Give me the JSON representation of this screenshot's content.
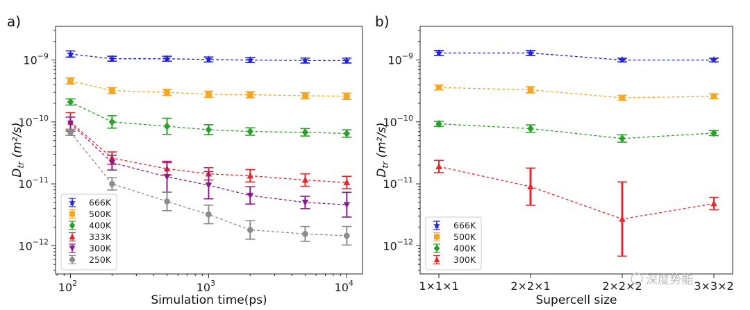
{
  "watermark": "深度势能",
  "colors": {
    "666K": "#1f1fdc",
    "500K": "#f5a623",
    "400K": "#2ca02c",
    "333K": "#e8262b",
    "300K_a": "#8b1a8b",
    "250K": "#8c8c8c",
    "300K_b": "#e8262b"
  },
  "chart_data": [
    {
      "type": "line",
      "panel_label": "a)",
      "xlabel": "Simulation time(ps)",
      "ylabel_base": "D",
      "ylabel_sub": "tr",
      "ylabel_unit": " (m²/s)",
      "xscale": "log",
      "yscale": "log",
      "xlim": [
        78,
        13000
      ],
      "ylim": [
        3.5e-13,
        3.5e-09
      ],
      "xticks": [
        {
          "v": 100,
          "b": "10",
          "e": "2"
        },
        {
          "v": 1000,
          "b": "10",
          "e": "3"
        },
        {
          "v": 10000,
          "b": "10",
          "e": "4"
        }
      ],
      "yticks": [
        {
          "v": 1e-09,
          "b": "10",
          "e": "−9"
        },
        {
          "v": 1e-10,
          "b": "10",
          "e": "−10"
        },
        {
          "v": 1e-11,
          "b": "10",
          "e": "−11"
        },
        {
          "v": 1e-12,
          "b": "10",
          "e": "−12"
        }
      ],
      "legend_position": "lower-left",
      "x": [
        100,
        200,
        500,
        1000,
        2000,
        5000,
        10000
      ],
      "series": [
        {
          "name": "666K",
          "color": "#1f1fdc",
          "marker": "star",
          "values": [
            1.25e-09,
            1.05e-09,
            1.05e-09,
            1.02e-09,
            1e-09,
            9.8e-10,
            9.8e-10
          ],
          "err": [
            0.05,
            0.04,
            0.04,
            0.04,
            0.04,
            0.04,
            0.04
          ]
        },
        {
          "name": "500K",
          "color": "#f5a623",
          "marker": "square",
          "values": [
            4.6e-10,
            3.2e-10,
            3e-10,
            2.8e-10,
            2.75e-10,
            2.65e-10,
            2.6e-10
          ],
          "err": [
            0.05,
            0.05,
            0.05,
            0.05,
            0.05,
            0.05,
            0.05
          ]
        },
        {
          "name": "400K",
          "color": "#2ca02c",
          "marker": "diamond",
          "values": [
            2.1e-10,
            1e-10,
            8.5e-11,
            7.5e-11,
            7e-11,
            6.8e-11,
            6.5e-11
          ],
          "err": [
            0.05,
            0.1,
            0.13,
            0.08,
            0.06,
            0.06,
            0.06
          ]
        },
        {
          "name": "333K",
          "color": "#e8262b",
          "marker": "triangle",
          "values": [
            1e-10,
            2.6e-11,
            1.75e-11,
            1.45e-11,
            1.35e-11,
            1.15e-11,
            1.05e-11
          ],
          "err": [
            0.15,
            0.1,
            0.1,
            0.1,
            0.1,
            0.1,
            0.1
          ]
        },
        {
          "name": "300K",
          "color": "#8b1a8b",
          "marker": "tri-down",
          "values": [
            9.5e-11,
            2.2e-11,
            1.3e-11,
            9.5e-12,
            6.5e-12,
            5e-12,
            4.6e-12
          ],
          "err": [
            0.1,
            0.12,
            0.25,
            0.22,
            0.14,
            0.1,
            0.2
          ]
        },
        {
          "name": "250K",
          "color": "#8c8c8c",
          "marker": "circle",
          "values": [
            6.8e-11,
            1e-11,
            5.2e-12,
            3.2e-12,
            1.8e-12,
            1.55e-12,
            1.45e-12
          ],
          "err": [
            0.05,
            0.1,
            0.15,
            0.15,
            0.15,
            0.12,
            0.15
          ]
        }
      ]
    },
    {
      "type": "line",
      "panel_label": "b)",
      "xlabel": "Supercell size",
      "ylabel_base": "D",
      "ylabel_sub": "tr",
      "ylabel_unit": " (m²/s)",
      "yscale": "log",
      "ylim": [
        3.5e-13,
        3.5e-09
      ],
      "categories": [
        "1×1×1",
        "2×2×1",
        "2×2×2",
        "3×3×2"
      ],
      "yticks": [
        {
          "v": 1e-09,
          "b": "10",
          "e": "−9"
        },
        {
          "v": 1e-10,
          "b": "10",
          "e": "−10"
        },
        {
          "v": 1e-11,
          "b": "10",
          "e": "−11"
        },
        {
          "v": 1e-12,
          "b": "10",
          "e": "−12"
        }
      ],
      "legend_position": "lower-left",
      "series": [
        {
          "name": "666K",
          "color": "#1f1fdc",
          "marker": "star",
          "values": [
            1.3e-09,
            1.3e-09,
            1e-09,
            1e-09
          ],
          "err": [
            0.04,
            0.04,
            0.03,
            0.03
          ]
        },
        {
          "name": "500K",
          "color": "#f5a623",
          "marker": "square",
          "values": [
            3.6e-10,
            3.3e-10,
            2.45e-10,
            2.6e-10
          ],
          "err": [
            0.04,
            0.05,
            0.04,
            0.04
          ]
        },
        {
          "name": "400K",
          "color": "#2ca02c",
          "marker": "diamond",
          "values": [
            9.3e-11,
            7.8e-11,
            5.4e-11,
            6.6e-11
          ],
          "err": [
            0.04,
            0.06,
            0.06,
            0.04
          ]
        },
        {
          "name": "300K",
          "color": "#e8262b",
          "marker": "triangle",
          "values": [
            1.9e-11,
            9e-12,
            2.7e-12,
            4.8e-12
          ],
          "err": [
            0.1,
            0.3,
            0.6,
            0.1
          ]
        }
      ]
    }
  ]
}
